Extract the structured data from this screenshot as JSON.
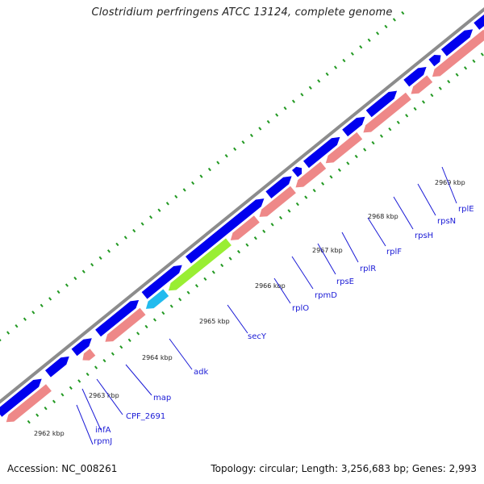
{
  "title": "Clostridium perfringens ATCC 13124, complete genome",
  "footer": {
    "accession": "Accession: NC_008261",
    "summary": "Topology: circular; Length: 3,256,683 bp; Genes: 2,993"
  },
  "colors": {
    "backbone": "#8c8c8c",
    "forward_cds": "#0000ee",
    "reverse_cds": "#ee8888",
    "highlight_green": "#99ee33",
    "highlight_cyan": "#22bbee",
    "ticks": "#229922",
    "gene_label": "#1a1ad6"
  },
  "scale_labels": [
    "2962 kbp",
    "2963 kbp",
    "2964 kbp",
    "2965 kbp",
    "2966 kbp",
    "2967 kbp",
    "2968 kbp",
    "2969 kbp"
  ],
  "gene_labels": [
    "rpmJ",
    "infA",
    "CPF_2691",
    "map",
    "adk",
    "secY",
    "rplO",
    "rpmD",
    "rpsE",
    "rplR",
    "rplF",
    "rpsH",
    "rpsN",
    "rplE"
  ]
}
